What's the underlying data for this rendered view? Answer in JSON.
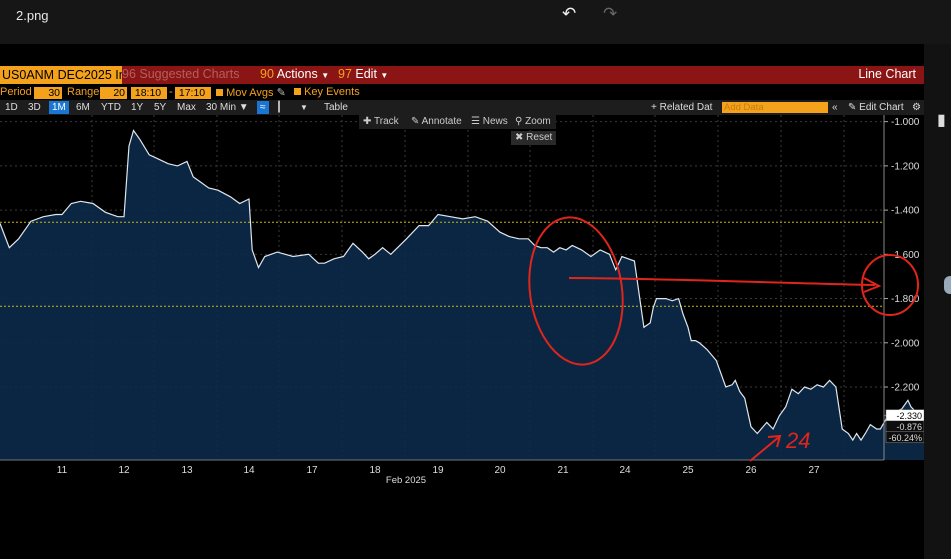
{
  "window": {
    "filename": "2.png"
  },
  "icons": {
    "undo": "undo-icon",
    "redo": "redo-icon",
    "gear": "gear-icon"
  },
  "colors": {
    "accent": "#f4a21c",
    "title_bar": "#8b1414",
    "area_fill": "#0c2a4a",
    "price_line": "#dfe6ee",
    "annotation": "#e0251b",
    "level_line": "#c8b41e",
    "selected": "#1976d2"
  },
  "title_bar": {
    "ticker": "US0ANM DEC2025 In",
    "suggested": "96 Suggested Charts",
    "actions_code": "90",
    "actions_label": "Actions",
    "edit_code": "97",
    "edit_label": "Edit",
    "chart_type": "Line Chart"
  },
  "params": {
    "period_label": "Period",
    "period_value": "30",
    "range_label": "Range",
    "range_value": "20",
    "time_from": "18:10",
    "time_to": "17:10",
    "mov_avgs": "Mov Avgs",
    "key_events": "Key Events"
  },
  "toolbar": {
    "ranges": [
      "1D",
      "3D",
      "1M",
      "6M",
      "YTD",
      "1Y",
      "5Y",
      "Max"
    ],
    "selected_range": "1M",
    "interval": "30 Min",
    "table": "Table",
    "related_data": "Related Dat",
    "add_data_placeholder": "Add Data",
    "edit_chart": "Edit Chart"
  },
  "chart_tools": {
    "track": "Track",
    "annotate": "Annotate",
    "news": "News",
    "zoom": "Zoom",
    "reset": "Reset"
  },
  "annotations": {
    "handwritten_label": "24"
  },
  "chart_data": {
    "type": "area",
    "xlabel": "Feb 2025",
    "x_ticks": [
      "11",
      "12",
      "13",
      "14",
      "17",
      "18",
      "19",
      "20",
      "21",
      "24",
      "25",
      "26",
      "27"
    ],
    "y_ticks": [
      -1.0,
      -1.2,
      -1.4,
      -1.6,
      -1.8,
      -2.0,
      -2.2
    ],
    "y_tick_labels": [
      "-1.000",
      "-1.200",
      "-1.400",
      "-1.600",
      "-1.800",
      "-2.000",
      "-2.200"
    ],
    "ylim": [
      -2.53,
      -0.97
    ],
    "grid": true,
    "reference_lines": [
      -1.455,
      -1.835
    ],
    "last_value_labels": [
      "-2.330",
      "-0.876",
      "-60.24%"
    ],
    "series": [
      {
        "x": [
          10.0,
          10.15,
          10.3,
          10.5,
          10.7,
          10.9,
          11.0,
          11.15,
          11.3,
          11.5,
          11.7,
          11.9,
          12.0,
          12.08,
          12.15,
          12.25,
          12.4,
          12.55,
          12.7,
          12.85,
          13.0,
          13.1,
          13.2,
          13.35,
          13.5,
          13.7,
          13.85,
          14.0,
          14.05,
          14.15,
          14.25,
          14.45,
          14.7,
          14.95,
          15.1,
          15.2,
          15.35,
          15.5,
          15.65,
          15.8,
          15.9,
          16.0,
          16.12,
          16.25,
          16.5,
          16.7,
          16.85,
          17.0,
          17.2,
          17.4,
          17.6,
          17.8,
          18.0,
          18.15,
          18.3,
          18.45,
          18.55,
          18.65,
          18.75,
          18.85,
          18.95,
          19.05,
          19.15,
          19.3,
          19.45,
          19.6,
          19.75,
          19.85,
          19.95,
          20.05,
          20.15,
          20.3,
          20.4,
          20.45,
          20.5,
          20.55,
          20.6,
          20.65,
          20.75,
          20.85,
          20.92,
          21.0,
          21.05,
          21.12,
          21.18,
          21.3,
          21.45,
          21.6,
          21.7,
          21.75,
          21.82,
          21.9,
          22.0,
          22.1,
          22.25,
          22.35,
          22.45,
          22.55,
          22.65,
          22.75,
          22.85,
          22.95,
          23.05,
          23.15,
          23.25,
          23.35,
          23.45,
          23.55,
          23.62,
          23.68,
          23.75,
          23.82,
          23.9,
          24.0,
          24.06,
          24.12,
          24.18,
          24.24,
          24.3,
          24.4,
          24.5,
          24.55,
          24.62,
          24.7,
          24.78,
          24.85,
          24.92,
          25.0,
          25.1,
          25.2,
          25.3,
          25.4
        ],
        "y": [
          -1.46,
          -1.57,
          -1.53,
          -1.45,
          -1.43,
          -1.42,
          -1.42,
          -1.37,
          -1.36,
          -1.37,
          -1.41,
          -1.43,
          -1.43,
          -1.11,
          -1.04,
          -1.08,
          -1.15,
          -1.17,
          -1.19,
          -1.2,
          -1.18,
          -1.25,
          -1.27,
          -1.3,
          -1.31,
          -1.34,
          -1.37,
          -1.35,
          -1.58,
          -1.66,
          -1.61,
          -1.59,
          -1.61,
          -1.6,
          -1.64,
          -1.64,
          -1.62,
          -1.61,
          -1.55,
          -1.59,
          -1.62,
          -1.6,
          -1.57,
          -1.6,
          -1.53,
          -1.47,
          -1.47,
          -1.42,
          -1.43,
          -1.44,
          -1.43,
          -1.45,
          -1.5,
          -1.52,
          -1.53,
          -1.53,
          -1.56,
          -1.57,
          -1.57,
          -1.59,
          -1.57,
          -1.58,
          -1.56,
          -1.58,
          -1.61,
          -1.58,
          -1.6,
          -1.67,
          -1.61,
          -1.62,
          -1.63,
          -1.93,
          -1.91,
          -1.84,
          -1.8,
          -1.8,
          -1.8,
          -1.8,
          -1.81,
          -1.8,
          -1.87,
          -1.93,
          -1.99,
          -1.99,
          -2.0,
          -2.03,
          -2.08,
          -2.2,
          -2.19,
          -2.17,
          -2.22,
          -2.25,
          -2.38,
          -2.41,
          -2.36,
          -2.39,
          -2.33,
          -2.29,
          -2.21,
          -2.23,
          -2.2,
          -2.21,
          -2.19,
          -2.2,
          -2.17,
          -2.2,
          -2.39,
          -2.41,
          -2.44,
          -2.41,
          -2.44,
          -2.41,
          -2.37,
          -2.39,
          -2.39,
          -2.36,
          -2.33,
          -2.33,
          -2.31,
          -2.3,
          -2.26,
          -2.29,
          -2.31,
          -2.34,
          -2.37,
          -2.39,
          -2.41,
          -2.4,
          -2.37,
          -2.35,
          -2.34,
          -2.33
        ]
      }
    ]
  }
}
